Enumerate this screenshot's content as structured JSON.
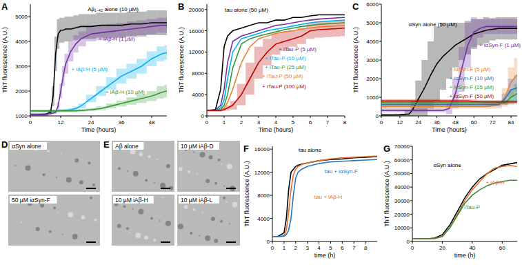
{
  "chart_data": [
    {
      "type": "line",
      "panel_label": "A",
      "xlabel": "Time (hours)",
      "ylabel": "ThT fluorescence (A.U.)",
      "xlim": [
        0,
        54
      ],
      "ylim": [
        1000,
        5500
      ],
      "xticks": [
        0,
        12,
        24,
        36,
        48
      ],
      "yticks": [
        1000,
        2000,
        3000,
        4000,
        5000
      ],
      "x": [
        0,
        3,
        6,
        8,
        9,
        10,
        11,
        12,
        13,
        14,
        16,
        18,
        20,
        24,
        28,
        32,
        36,
        40,
        44,
        48,
        52,
        54
      ],
      "series": [
        {
          "name": "Aβ₁₋₄₂ alone (10 µM)",
          "color": "#000000",
          "values": [
            1050,
            1050,
            1060,
            1150,
            1800,
            3500,
            4300,
            4450,
            4450,
            4500,
            4500,
            4550,
            4600,
            4600,
            4650,
            4650,
            4650,
            4700,
            4700,
            4750,
            4750,
            4750
          ],
          "error": [
            50,
            50,
            60,
            100,
            400,
            700,
            600,
            500,
            500,
            500,
            500,
            500,
            500,
            500,
            500,
            500,
            500,
            500,
            500,
            500,
            500,
            500
          ]
        },
        {
          "name": "+ iAβ-H (1 µM)",
          "color": "#7030a0",
          "values": [
            1050,
            1050,
            1060,
            1100,
            1120,
            1150,
            1400,
            2000,
            2600,
            3100,
            3600,
            3900,
            4100,
            4300,
            4350,
            4400,
            4450,
            4500,
            4550,
            4600,
            4650,
            4650
          ],
          "error": [
            50,
            50,
            50,
            50,
            50,
            60,
            150,
            300,
            400,
            400,
            400,
            350,
            300,
            300,
            300,
            300,
            300,
            300,
            300,
            300,
            300,
            300
          ]
        },
        {
          "name": "+ iAβ-H (5 µM)",
          "color": "#00b0f0",
          "values": [
            1200,
            1200,
            1200,
            1200,
            1200,
            1200,
            1200,
            1220,
            1220,
            1230,
            1250,
            1300,
            1400,
            1700,
            2000,
            2300,
            2600,
            2800,
            3000,
            3300,
            3500,
            3550
          ],
          "error": [
            50,
            50,
            50,
            50,
            50,
            50,
            50,
            50,
            50,
            50,
            60,
            80,
            100,
            150,
            200,
            250,
            300,
            300,
            300,
            300,
            300,
            300
          ]
        },
        {
          "name": "+ iAβ-H (10 µM)",
          "color": "#339933",
          "values": [
            1200,
            1200,
            1200,
            1200,
            1200,
            1200,
            1200,
            1200,
            1200,
            1200,
            1200,
            1200,
            1220,
            1250,
            1300,
            1400,
            1500,
            1600,
            1700,
            1800,
            1950,
            2000
          ],
          "error": [
            50,
            50,
            50,
            50,
            50,
            50,
            50,
            50,
            50,
            50,
            50,
            50,
            50,
            60,
            80,
            100,
            120,
            150,
            180,
            200,
            250,
            250
          ]
        }
      ]
    },
    {
      "type": "line",
      "panel_label": "B",
      "xlabel": "Time (hours)",
      "ylabel": "ThT fluorescence (A.U.)",
      "xlim": [
        0,
        8
      ],
      "ylim": [
        0,
        21000
      ],
      "xticks": [
        0,
        1,
        2,
        3,
        4,
        5,
        6,
        7,
        8
      ],
      "yticks": [
        0,
        4000,
        8000,
        12000,
        16000,
        20000
      ],
      "x": [
        0,
        0.5,
        0.8,
        1,
        1.2,
        1.5,
        2,
        2.5,
        3,
        3.5,
        4,
        4.5,
        5,
        5.5,
        6,
        6.5,
        7,
        7.5,
        8
      ],
      "series": [
        {
          "name": "tau alone (50 µM)",
          "color": "#000000",
          "values": [
            1000,
            1200,
            5000,
            13000,
            15000,
            16000,
            16500,
            17000,
            17500,
            17500,
            18000,
            18000,
            18500,
            18500,
            18800,
            19000,
            19000,
            19000,
            19000
          ]
        },
        {
          "name": "+ iTau-P (5 µM)",
          "color": "#7030a0",
          "values": [
            1000,
            1100,
            2000,
            5000,
            10000,
            14000,
            15000,
            15500,
            16000,
            16500,
            17000,
            17200,
            17500,
            17800,
            18000,
            18200,
            18300,
            18400,
            18500
          ]
        },
        {
          "name": "+ iTau-P (10 µM)",
          "color": "#00b0f0",
          "values": [
            1000,
            1000,
            1500,
            3000,
            7000,
            12000,
            14500,
            15000,
            15500,
            16000,
            16300,
            16600,
            16900,
            17200,
            17500,
            17700,
            17800,
            17900,
            18000
          ]
        },
        {
          "name": "+ iTau-P (25 µM)",
          "color": "#339933",
          "values": [
            1000,
            1000,
            1200,
            2000,
            4000,
            9000,
            13500,
            14500,
            15000,
            15400,
            15800,
            16200,
            16500,
            16800,
            17000,
            17200,
            17300,
            17400,
            17500
          ]
        },
        {
          "name": "+ iTau-P (50 µM)",
          "color": "#ed7d31",
          "values": [
            1000,
            1000,
            1100,
            1500,
            2500,
            5000,
            10000,
            13000,
            14500,
            15000,
            15500,
            15800,
            16000,
            16300,
            16500,
            16700,
            16800,
            16900,
            17000
          ]
        },
        {
          "name": "+ iTau-P (100 µM)",
          "color": "#c00000",
          "values": [
            1000,
            1000,
            1000,
            1200,
            1500,
            2000,
            4000,
            7000,
            10000,
            12000,
            13500,
            14000,
            14500,
            15000,
            16000,
            16200,
            16300,
            16400,
            16500
          ],
          "error": [
            200,
            200,
            200,
            300,
            500,
            800,
            2000,
            3000,
            3000,
            2500,
            2000,
            1800,
            1500,
            1500,
            1500,
            1500,
            1500,
            1500,
            1500
          ]
        }
      ]
    },
    {
      "type": "line",
      "panel_label": "C",
      "xlabel": "Time (hours)",
      "ylabel": "ThT fluorescence (A.U.)",
      "xlim": [
        0,
        88
      ],
      "ylim": [
        0,
        6000
      ],
      "xticks": [
        0,
        12,
        24,
        36,
        48,
        60,
        72,
        84
      ],
      "yticks": [
        0,
        1000,
        2000,
        3000,
        4000,
        5000,
        6000
      ],
      "x": [
        0,
        6,
        12,
        18,
        20,
        24,
        28,
        32,
        36,
        40,
        44,
        48,
        52,
        56,
        60,
        64,
        68,
        72,
        76,
        80,
        84,
        88
      ],
      "series": [
        {
          "name": "αSyn alone (50 µM)",
          "color": "#000000",
          "values": [
            50,
            50,
            60,
            100,
            300,
            900,
            1500,
            2200,
            2800,
            3200,
            3500,
            3800,
            4000,
            4200,
            4400,
            4500,
            4600,
            4650,
            4700,
            4700,
            4700,
            4700
          ],
          "error": [
            50,
            50,
            60,
            200,
            500,
            1000,
            1500,
            1800,
            2000,
            1800,
            1500,
            1200,
            1000,
            900,
            800,
            700,
            700,
            600,
            600,
            600,
            600,
            600
          ]
        },
        {
          "name": "+ iαSyn-F (1 µM)",
          "color": "#7030a0",
          "values": [
            300,
            300,
            300,
            300,
            300,
            300,
            300,
            300,
            300,
            300,
            400,
            1200,
            2500,
            3800,
            4500,
            4700,
            4800,
            4800,
            4800,
            4800,
            4800,
            4800
          ],
          "error": [
            100,
            100,
            100,
            100,
            100,
            100,
            100,
            100,
            100,
            100,
            300,
            800,
            1200,
            1200,
            800,
            500,
            400,
            400,
            400,
            400,
            400,
            400
          ]
        },
        {
          "name": "+ iαSyn-F (5 µM)",
          "color": "#ed7d31",
          "values": [
            500,
            500,
            500,
            500,
            500,
            500,
            500,
            500,
            500,
            500,
            500,
            500,
            500,
            500,
            500,
            500,
            500,
            550,
            600,
            1000,
            1800,
            2200
          ],
          "error": [
            100,
            100,
            100,
            100,
            100,
            100,
            100,
            100,
            100,
            100,
            100,
            100,
            100,
            100,
            100,
            100,
            100,
            150,
            200,
            500,
            800,
            900
          ]
        },
        {
          "name": "+ iαSyn-F (10 µM)",
          "color": "#1f77d0",
          "values": [
            600,
            600,
            600,
            600,
            600,
            600,
            600,
            600,
            600,
            600,
            600,
            600,
            600,
            600,
            600,
            600,
            600,
            600,
            600,
            900,
            1400,
            1500
          ],
          "error": [
            100,
            100,
            100,
            100,
            100,
            100,
            100,
            100,
            100,
            100,
            100,
            100,
            100,
            100,
            100,
            100,
            100,
            100,
            100,
            300,
            600,
            700
          ]
        },
        {
          "name": "+ iαSyn-F (25 µM)",
          "color": "#339933",
          "values": [
            700,
            700,
            700,
            700,
            700,
            700,
            700,
            700,
            700,
            700,
            700,
            700,
            700,
            700,
            700,
            700,
            700,
            700,
            700,
            700,
            1000,
            1200
          ],
          "error": [
            100,
            100,
            100,
            100,
            100,
            100,
            100,
            100,
            100,
            100,
            100,
            100,
            100,
            100,
            100,
            100,
            100,
            100,
            100,
            100,
            400,
            500
          ]
        },
        {
          "name": "+ iαSyn-F (50 µM)",
          "color": "#c00000",
          "values": [
            800,
            800,
            800,
            800,
            800,
            800,
            800,
            800,
            800,
            800,
            800,
            800,
            800,
            800,
            780,
            760,
            750,
            750,
            750,
            750,
            750,
            750
          ],
          "error": [
            100,
            100,
            100,
            100,
            100,
            100,
            100,
            100,
            100,
            100,
            100,
            100,
            100,
            100,
            100,
            100,
            100,
            100,
            100,
            100,
            100,
            100
          ]
        }
      ]
    },
    {
      "type": "line",
      "panel_label": "F",
      "xlabel": "time (h)",
      "ylabel": "ThT fluorescence (A.U.)",
      "xlim": [
        0,
        9
      ],
      "ylim": [
        0,
        16500
      ],
      "xticks": [
        0,
        1,
        2,
        3,
        4,
        5,
        6,
        7,
        8
      ],
      "yticks": [
        0,
        4000,
        8000,
        12000,
        16000
      ],
      "x": [
        0,
        0.5,
        1,
        1.2,
        1.4,
        1.6,
        1.8,
        2,
        2.2,
        2.5,
        3,
        4,
        5,
        6,
        7,
        8,
        9
      ],
      "series": [
        {
          "name": "tau alone",
          "color": "#000000",
          "values": [
            800,
            900,
            1500,
            4000,
            9000,
            12000,
            12500,
            13000,
            13200,
            13400,
            13600,
            14000,
            14200,
            14300,
            14500,
            14600,
            14700
          ]
        },
        {
          "name": "tau + iAβ-H",
          "color": "#e07030",
          "values": [
            800,
            850,
            1000,
            2000,
            5000,
            9000,
            11500,
            12500,
            13000,
            13300,
            13600,
            14000,
            14300,
            14500,
            14600,
            14700,
            14800
          ]
        },
        {
          "name": "tau + iαSyn-F",
          "color": "#2e75b6",
          "values": [
            800,
            850,
            900,
            1200,
            2000,
            4000,
            8000,
            11000,
            12000,
            12500,
            13000,
            13500,
            13800,
            13900,
            14000,
            14100,
            14200
          ]
        }
      ]
    },
    {
      "type": "line",
      "panel_label": "G",
      "xlabel": "time (h)",
      "ylabel": "ThT fluorescence (A.U.)",
      "xlim": [
        0,
        70
      ],
      "ylim": [
        0,
        70000
      ],
      "xticks": [
        0,
        20,
        40,
        60
      ],
      "yticks": [
        0,
        10000,
        20000,
        30000,
        40000,
        50000,
        60000,
        70000
      ],
      "x": [
        0,
        10,
        15,
        20,
        25,
        30,
        35,
        40,
        45,
        50,
        55,
        60,
        65,
        70
      ],
      "series": [
        {
          "name": "αSyn alone",
          "color": "#000000",
          "values": [
            2000,
            2000,
            2500,
            5000,
            12000,
            22000,
            32000,
            40000,
            46000,
            50000,
            53000,
            56000,
            57000,
            58000
          ]
        },
        {
          "name": "+ iAβ-H",
          "color": "#e07030",
          "values": [
            2000,
            2000,
            2200,
            4000,
            10000,
            20000,
            30000,
            38000,
            44000,
            50000,
            54000,
            55000,
            56000,
            55000
          ]
        },
        {
          "name": "+ iTau-P",
          "color": "#3a8a3a",
          "values": [
            2000,
            2000,
            2200,
            3500,
            10000,
            19000,
            28000,
            34000,
            38000,
            41000,
            43000,
            44000,
            45000,
            45000
          ]
        }
      ]
    }
  ],
  "micrographs": [
    {
      "panel_label": "D",
      "labels": [
        "αSyn alone",
        "50 µM iαSyn-F"
      ]
    },
    {
      "panel_label": "E",
      "labels": [
        "Aβ alone",
        "10 µM iAβ-D",
        "10 µM iAβ-H",
        "10 µM iAβ-L"
      ]
    }
  ]
}
